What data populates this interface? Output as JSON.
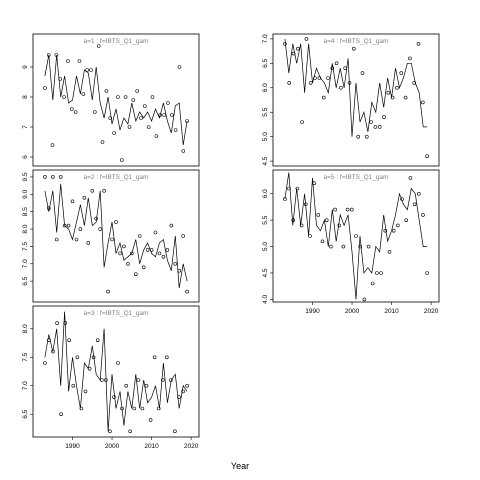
{
  "chart_data": {
    "type": "line",
    "xlabel": "Year",
    "panels": [
      {
        "title": "a=1 : f=IBTS_Q1_gam",
        "xlim": [
          1980,
          2022
        ],
        "ylim": [
          5.7,
          10.1
        ],
        "yticks": [
          6,
          7,
          8,
          9
        ],
        "xticks": [],
        "x": [
          1983,
          1984,
          1985,
          1986,
          1987,
          1988,
          1989,
          1990,
          1991,
          1992,
          1993,
          1994,
          1995,
          1996,
          1997,
          1998,
          1999,
          2000,
          2001,
          2002,
          2003,
          2004,
          2005,
          2006,
          2007,
          2008,
          2009,
          2010,
          2011,
          2012,
          2013,
          2014,
          2015,
          2016,
          2017,
          2018,
          2019
        ],
        "line": [
          8.7,
          9.4,
          7.9,
          9.4,
          8.0,
          8.7,
          7.8,
          7.9,
          8.7,
          8.1,
          8.9,
          8.8,
          7.9,
          9.0,
          7.8,
          7.3,
          8.0,
          7.1,
          7.6,
          6.9,
          7.3,
          7.1,
          7.8,
          7.2,
          7.5,
          7.3,
          7.5,
          7.2,
          7.6,
          7.3,
          7.8,
          7.2,
          6.8,
          7.7,
          7.8,
          6.4,
          7.2
        ],
        "points": [
          8.3,
          9.4,
          6.4,
          9.4,
          8.6,
          8.0,
          9.2,
          7.6,
          7.5,
          9.2,
          8.1,
          8.9,
          8.9,
          7.5,
          9.7,
          6.5,
          8.2,
          7.3,
          6.8,
          8.0,
          5.9,
          8.0,
          7.0,
          7.9,
          8.2,
          7.3,
          7.7,
          7.0,
          8.0,
          6.7,
          7.4,
          7.4,
          7.8,
          7.4,
          6.9,
          9.0,
          6.2,
          7.2
        ]
      },
      {
        "title": "a=2 : f=IBTS_Q1_gam",
        "xlim": [
          1980,
          2022
        ],
        "ylim": [
          5.9,
          9.7
        ],
        "yticks": [
          6.5,
          7.0,
          7.5,
          8.0,
          8.5,
          9.0,
          9.5
        ],
        "xticks": [],
        "x": [
          1983,
          1984,
          1985,
          1986,
          1987,
          1988,
          1989,
          1990,
          1991,
          1992,
          1993,
          1994,
          1995,
          1996,
          1997,
          1998,
          1999,
          2000,
          2001,
          2002,
          2003,
          2004,
          2005,
          2006,
          2007,
          2008,
          2009,
          2010,
          2011,
          2012,
          2013,
          2014,
          2015,
          2016,
          2017,
          2018,
          2019
        ],
        "line": [
          9.1,
          8.5,
          9.1,
          7.9,
          9.3,
          8.1,
          8.0,
          7.7,
          8.2,
          8.7,
          8.1,
          8.9,
          8.1,
          8.2,
          9.1,
          6.9,
          7.6,
          8.2,
          7.3,
          7.6,
          7.1,
          7.2,
          7.3,
          7.7,
          7.0,
          7.4,
          7.6,
          7.3,
          7.2,
          7.6,
          7.7,
          7.1,
          6.8,
          7.8,
          6.3,
          7.0,
          6.5
        ],
        "points": [
          9.5,
          8.6,
          9.5,
          7.7,
          9.5,
          8.1,
          8.1,
          8.8,
          7.7,
          8.0,
          8.9,
          7.6,
          9.1,
          8.3,
          8.0,
          9.1,
          6.2,
          7.7,
          8.2,
          7.3,
          7.5,
          7.0,
          7.3,
          6.7,
          7.8,
          6.9,
          7.4,
          7.4,
          7.9,
          7.3,
          7.2,
          7.4,
          8.1,
          7.0,
          6.8,
          7.8,
          6.2
        ]
      },
      {
        "title": "a=3 : f=IBTS_Q1_gam",
        "xlim": [
          1980,
          2022
        ],
        "ylim": [
          6.1,
          8.4
        ],
        "yticks": [
          6.5,
          7.0,
          7.5,
          8.0
        ],
        "xticks": [
          1990,
          2000,
          2010,
          2020
        ],
        "x": [
          1983,
          1984,
          1985,
          1986,
          1987,
          1988,
          1989,
          1990,
          1991,
          1992,
          1993,
          1994,
          1995,
          1996,
          1997,
          1998,
          1999,
          2000,
          2001,
          2002,
          2003,
          2004,
          2005,
          2006,
          2007,
          2008,
          2009,
          2010,
          2011,
          2012,
          2013,
          2014,
          2015,
          2016,
          2017,
          2018,
          2019
        ],
        "line": [
          7.5,
          7.9,
          7.6,
          8.0,
          7.0,
          8.3,
          6.9,
          7.5,
          7.0,
          6.6,
          7.4,
          7.3,
          7.7,
          7.2,
          7.1,
          8.0,
          6.2,
          7.2,
          6.6,
          6.9,
          6.3,
          6.9,
          6.6,
          7.2,
          6.6,
          7.1,
          6.7,
          6.8,
          7.0,
          6.6,
          7.4,
          6.7,
          7.1,
          7.2,
          6.6,
          7.0,
          6.9
        ],
        "points": [
          7.4,
          7.8,
          7.6,
          8.1,
          6.5,
          8.1,
          7.8,
          7.0,
          7.5,
          6.6,
          6.9,
          7.3,
          7.5,
          7.8,
          7.1,
          7.1,
          6.2,
          6.8,
          7.4,
          6.6,
          7.0,
          6.2,
          6.6,
          7.1,
          6.6,
          7.0,
          6.4,
          7.5,
          6.6,
          7.1,
          7.5,
          7.1,
          6.2,
          6.8,
          6.9,
          7.0
        ]
      },
      {
        "title": "a=4 : f=IBTS_Q1_gam",
        "xlim": [
          1980,
          2022
        ],
        "ylim": [
          4.4,
          7.1
        ],
        "yticks": [
          4.5,
          5.0,
          5.5,
          6.0,
          6.5,
          7.0
        ],
        "xticks": [],
        "x": [
          1983,
          1984,
          1985,
          1986,
          1987,
          1988,
          1989,
          1990,
          1991,
          1992,
          1993,
          1994,
          1995,
          1996,
          1997,
          1998,
          1999,
          2000,
          2001,
          2002,
          2003,
          2004,
          2005,
          2006,
          2007,
          2008,
          2009,
          2010,
          2011,
          2012,
          2013,
          2014,
          2015,
          2016,
          2017,
          2018,
          2019
        ],
        "line": [
          7.0,
          6.3,
          6.9,
          6.5,
          6.9,
          5.9,
          6.9,
          6.1,
          6.4,
          6.2,
          6.1,
          5.9,
          6.5,
          6.0,
          6.4,
          6.0,
          6.6,
          5.0,
          6.1,
          5.3,
          5.5,
          5.1,
          5.7,
          5.5,
          6.1,
          5.6,
          6.2,
          5.8,
          6.4,
          6.0,
          6.2,
          6.5,
          6.5,
          6.1,
          5.9,
          5.2,
          5.2
        ],
        "points": [
          6.9,
          6.1,
          6.7,
          6.8,
          5.3,
          7.0,
          6.1,
          6.2,
          6.2,
          5.8,
          6.2,
          6.4,
          6.5,
          6.0,
          6.4,
          6.1,
          6.8,
          5.0,
          6.3,
          5.0,
          5.3,
          5.2,
          5.2,
          5.4,
          5.9,
          5.8,
          6.0,
          6.3,
          5.8,
          6.6,
          6.1,
          6.9,
          5.7,
          4.6
        ]
      },
      {
        "title": "a=5 : f=IBTS_Q1_gam",
        "xlim": [
          1980,
          2022
        ],
        "ylim": [
          3.95,
          6.45
        ],
        "yticks": [
          4.0,
          4.5,
          5.0,
          5.5,
          6.0
        ],
        "xticks": [
          1990,
          2000,
          2010,
          2020
        ],
        "x": [
          1983,
          1984,
          1985,
          1986,
          1987,
          1988,
          1989,
          1990,
          1991,
          1992,
          1993,
          1994,
          1995,
          1996,
          1997,
          1998,
          1999,
          2000,
          2001,
          2002,
          2003,
          2004,
          2005,
          2006,
          2007,
          2008,
          2009,
          2010,
          2011,
          2012,
          2013,
          2014,
          2015,
          2016,
          2017,
          2018,
          2019
        ],
        "line": [
          5.9,
          6.4,
          5.4,
          6.1,
          5.4,
          6.0,
          5.2,
          6.3,
          5.4,
          5.3,
          5.5,
          5.0,
          5.7,
          5.1,
          5.6,
          5.4,
          5.6,
          4.9,
          4.0,
          5.2,
          4.5,
          4.6,
          4.5,
          5.0,
          4.9,
          5.6,
          5.1,
          5.3,
          5.6,
          6.0,
          5.8,
          5.7,
          6.1,
          6.0,
          5.5,
          5.0,
          5.0
        ],
        "points": [
          5.9,
          6.1,
          5.5,
          6.1,
          5.4,
          5.8,
          5.2,
          6.2,
          5.6,
          5.1,
          5.5,
          5.0,
          5.7,
          5.4,
          5.0,
          5.7,
          5.7,
          5.2,
          5.0,
          4.0,
          5.0,
          4.3,
          4.5,
          4.5,
          5.3,
          4.9,
          5.3,
          5.4,
          5.9,
          5.5,
          6.3,
          5.8,
          6.0,
          5.6,
          4.5
        ]
      }
    ]
  }
}
